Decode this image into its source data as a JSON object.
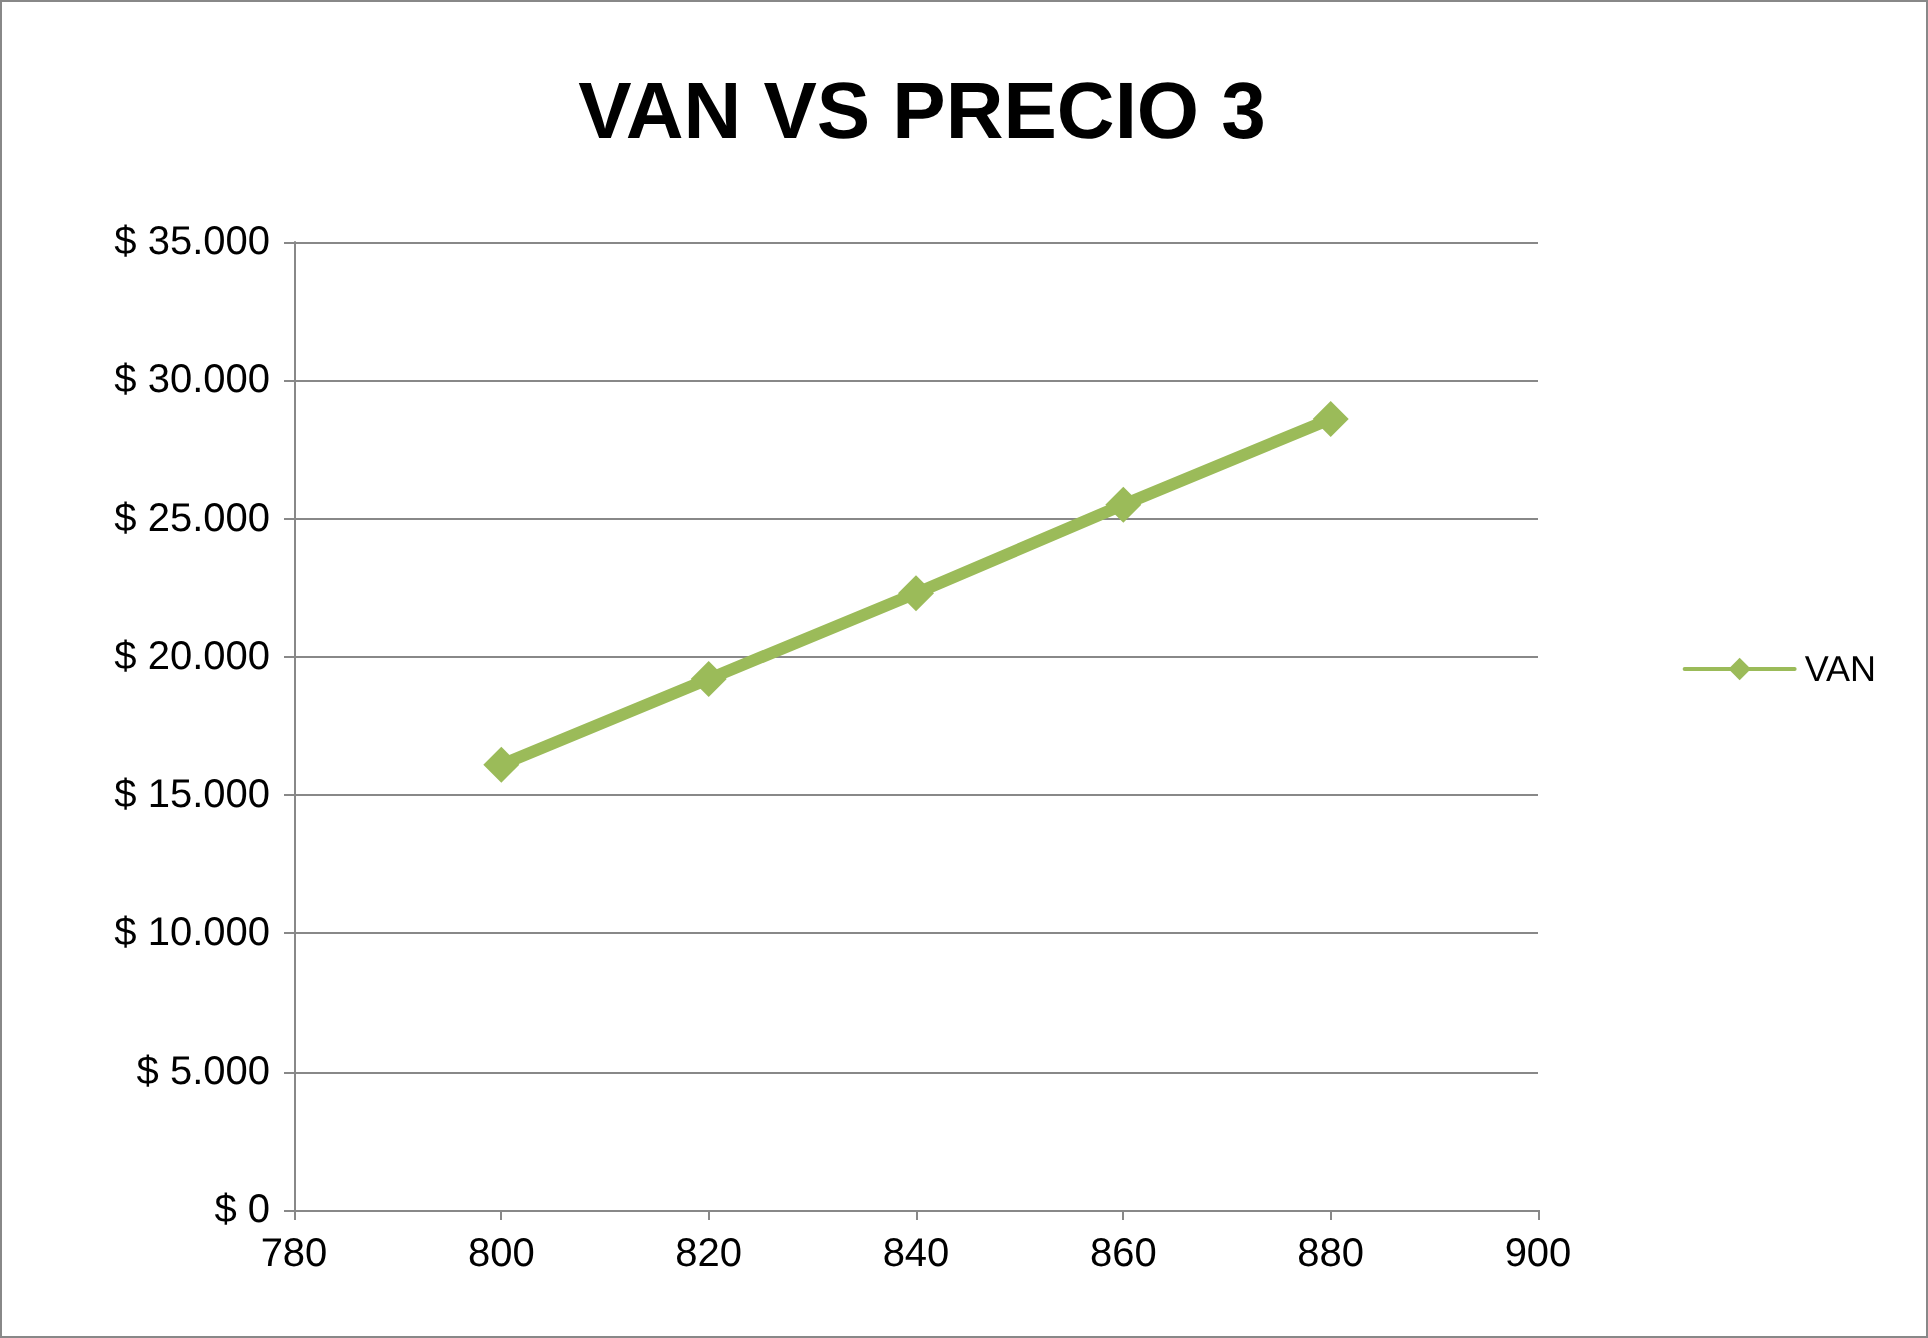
{
  "chart_data": {
    "type": "line",
    "title": "VAN VS PRECIO 3",
    "x": [
      800,
      820,
      840,
      860,
      880
    ],
    "series": [
      {
        "name": "VAN",
        "color": "#9bbb59",
        "values": [
          16100,
          19200,
          22300,
          25500,
          28600
        ]
      }
    ],
    "xlim": [
      780,
      900
    ],
    "xticks": [
      780,
      800,
      820,
      840,
      860,
      880,
      900
    ],
    "ylim": [
      0,
      35000
    ],
    "yticks": [
      {
        "value": 0,
        "label": "$ 0"
      },
      {
        "value": 5000,
        "label": "$ 5.000"
      },
      {
        "value": 10000,
        "label": "$ 10.000"
      },
      {
        "value": 15000,
        "label": "$ 15.000"
      },
      {
        "value": 20000,
        "label": "$ 20.000"
      },
      {
        "value": 25000,
        "label": "$ 25.000"
      },
      {
        "value": 30000,
        "label": "$ 30.000"
      },
      {
        "value": 35000,
        "label": "$ 35.000"
      }
    ],
    "grid": "y",
    "legend": "right",
    "marker": "diamond",
    "line_style": "solid"
  }
}
